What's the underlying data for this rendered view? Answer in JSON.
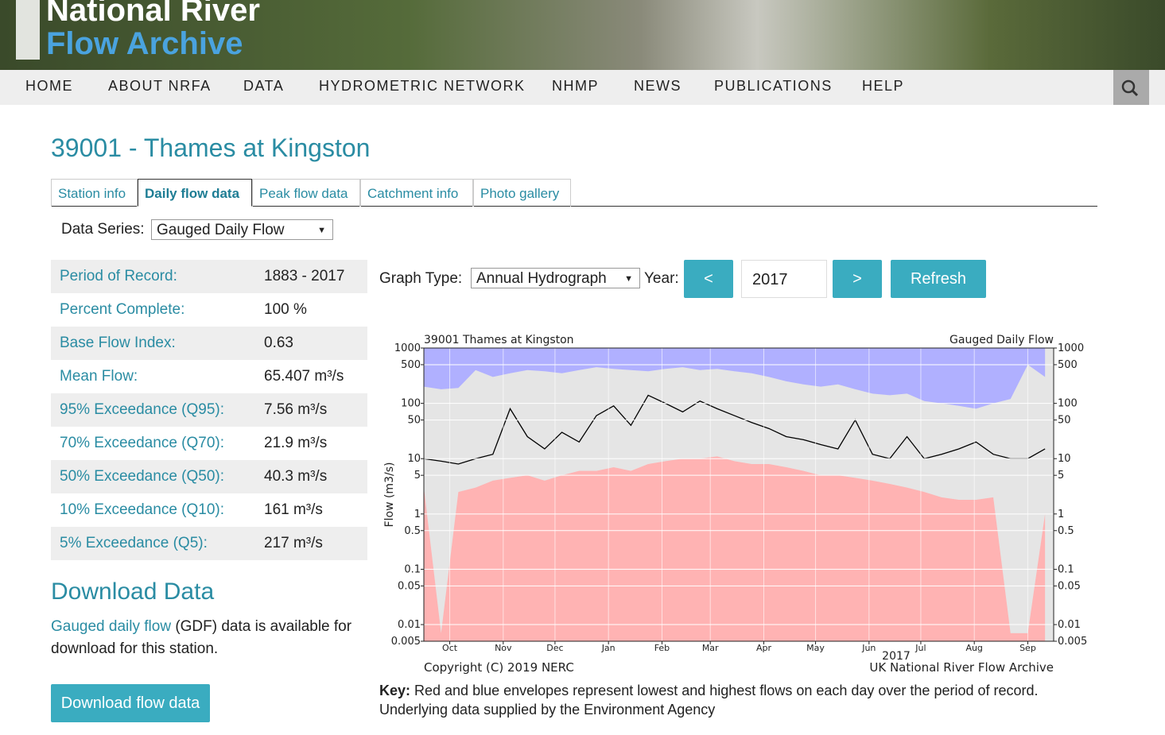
{
  "header": {
    "logo_line1": "National River",
    "logo_line2": "Flow Archive"
  },
  "nav": [
    "HOME",
    "ABOUT NRFA",
    "DATA",
    "HYDROMETRIC NETWORK",
    "NHMP",
    "NEWS",
    "PUBLICATIONS",
    "HELP"
  ],
  "page_title": "39001 - Thames at Kingston",
  "tabs": [
    "Station info",
    "Daily flow data",
    "Peak flow data",
    "Catchment info",
    "Photo gallery"
  ],
  "active_tab": 1,
  "data_series": {
    "label": "Data Series:",
    "selected": "Gauged Daily Flow"
  },
  "stats": [
    {
      "label": "Period of Record:",
      "value": "1883 - 2017"
    },
    {
      "label": "Percent Complete:",
      "value": "100 %"
    },
    {
      "label": "Base Flow Index:",
      "value": "0.63"
    },
    {
      "label": "Mean Flow:",
      "value": "65.407 m³/s"
    },
    {
      "label": "95% Exceedance (Q95):",
      "value": "7.56 m³/s"
    },
    {
      "label": "70% Exceedance (Q70):",
      "value": "21.9 m³/s"
    },
    {
      "label": "50% Exceedance (Q50):",
      "value": "40.3 m³/s"
    },
    {
      "label": "10% Exceedance (Q10):",
      "value": "161 m³/s"
    },
    {
      "label": "5% Exceedance (Q5):",
      "value": "217 m³/s"
    }
  ],
  "download": {
    "title": "Download Data",
    "link": "Gauged daily flow",
    "text": " (GDF) data is available for download for this station.",
    "button": "Download flow data"
  },
  "controls": {
    "graph_type_label": "Graph Type:",
    "graph_type": "Annual Hydrograph",
    "year_label": "Year:",
    "prev": "<",
    "year": "2017",
    "next": ">",
    "refresh": "Refresh"
  },
  "chart_data": {
    "type": "hydrograph",
    "title": "39001 Thames at Kingston",
    "subtitle": "Gauged Daily Flow",
    "ylabel": "Flow (m3/s)",
    "xlabel": "2017",
    "footer_left": "Copyright (C) 2019 NERC",
    "footer_right": "UK National River Flow Archive",
    "yscale": "log",
    "grid": true,
    "ylim": [
      0.005,
      1000
    ],
    "yticks": [
      1000,
      500,
      100,
      50,
      10,
      5,
      1,
      0.5,
      0.1,
      0.05,
      0.01,
      0.005
    ],
    "xlim": [
      0,
      365
    ],
    "xticks": [
      {
        "value": 15,
        "label": "Oct"
      },
      {
        "value": 46,
        "label": "Nov"
      },
      {
        "value": 76,
        "label": "Dec"
      },
      {
        "value": 107,
        "label": "Jan"
      },
      {
        "value": 138,
        "label": "Feb"
      },
      {
        "value": 166,
        "label": "Mar"
      },
      {
        "value": 197,
        "label": "Apr"
      },
      {
        "value": 227,
        "label": "May"
      },
      {
        "value": 258,
        "label": "Jun"
      },
      {
        "value": 288,
        "label": "Jul"
      },
      {
        "value": 319,
        "label": "Aug"
      },
      {
        "value": 350,
        "label": "Sep"
      }
    ],
    "x": [
      0,
      10,
      20,
      30,
      40,
      50,
      60,
      70,
      80,
      90,
      100,
      110,
      120,
      130,
      140,
      150,
      160,
      170,
      180,
      190,
      200,
      210,
      220,
      230,
      240,
      250,
      260,
      270,
      280,
      290,
      300,
      310,
      320,
      330,
      340,
      350,
      360
    ],
    "series": [
      {
        "name": "Highest flow",
        "color": "#b0b0ff",
        "fill": "top",
        "values": [
          200,
          180,
          190,
          400,
          300,
          350,
          400,
          380,
          350,
          400,
          450,
          420,
          400,
          380,
          420,
          450,
          400,
          420,
          380,
          350,
          300,
          250,
          220,
          200,
          220,
          180,
          150,
          140,
          150,
          110,
          100,
          90,
          80,
          100,
          120,
          500,
          300
        ]
      },
      {
        "name": "Lowest flow",
        "color": "#ffb3b3",
        "fill": "bottom",
        "values": [
          3,
          0.007,
          2.5,
          3,
          4,
          4.5,
          5,
          4,
          5,
          6,
          6,
          7,
          6,
          8,
          9,
          10,
          10,
          11,
          9,
          8,
          8,
          7,
          6,
          5,
          5,
          4.5,
          4,
          3.5,
          3,
          2.5,
          2,
          1.8,
          1.8,
          2,
          0.007,
          0.007,
          1
        ]
      },
      {
        "name": "2017",
        "color": "#000000",
        "fill": "none",
        "values": [
          10,
          9,
          8,
          10,
          12,
          80,
          25,
          15,
          30,
          20,
          60,
          90,
          40,
          140,
          100,
          70,
          110,
          80,
          60,
          45,
          35,
          25,
          22,
          18,
          15,
          50,
          12,
          10,
          25,
          10,
          12,
          15,
          20,
          12,
          10,
          10,
          15
        ]
      }
    ]
  },
  "key": {
    "label": "Key:",
    "text": " Red and blue envelopes represent lowest and highest flows on each day over the period of record.",
    "source": "Underlying data supplied by the Environment Agency"
  }
}
